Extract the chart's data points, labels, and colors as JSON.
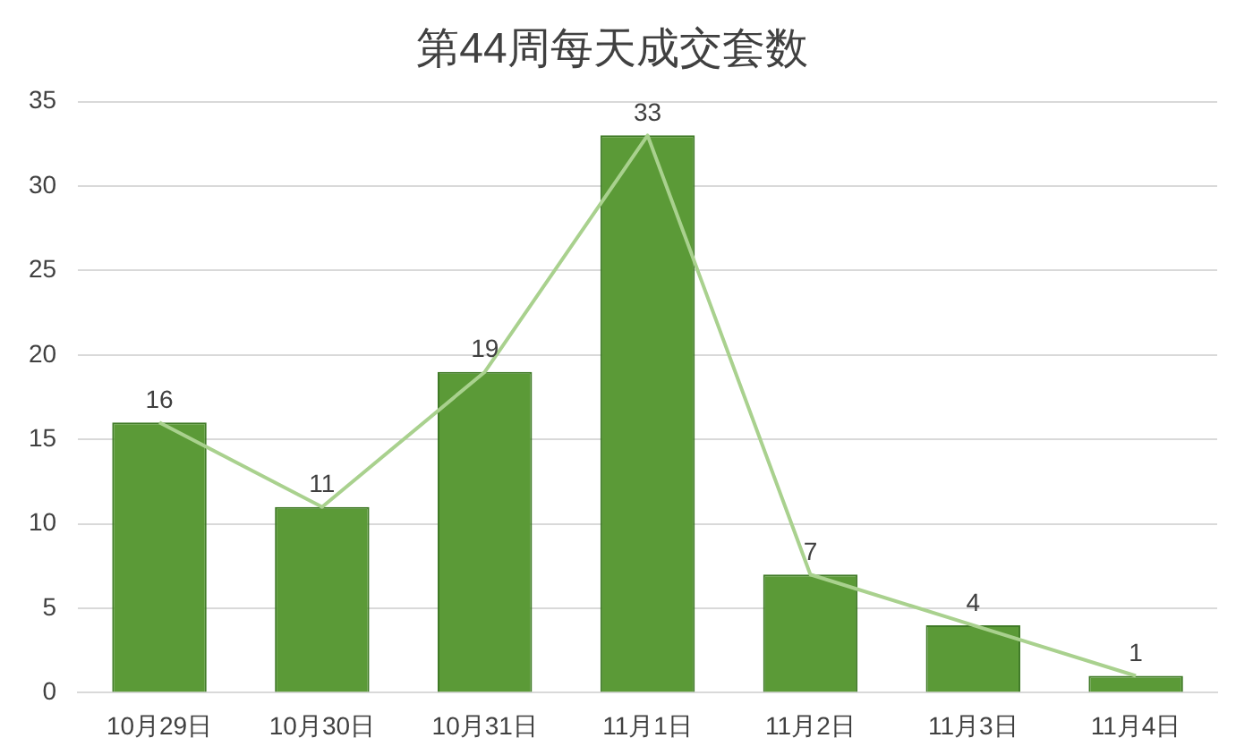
{
  "chart_data": {
    "type": "bar",
    "title": "第44周每天成交套数",
    "categories": [
      "10月29日",
      "10月30日",
      "10月31日",
      "11月1日",
      "11月2日",
      "11月3日",
      "11月4日"
    ],
    "series": [
      {
        "color": "#5b9a37",
        "values": [
          16,
          11,
          19,
          33,
          7,
          4,
          1
        ],
        "value_labels": [
          "16",
          "11",
          "19",
          "33",
          "7",
          "4",
          "1"
        ]
      },
      {
        "type": "line",
        "color": "#a9d18e",
        "values": [
          16,
          11,
          19,
          33,
          7,
          4,
          1
        ]
      }
    ],
    "ylim": [
      0,
      35
    ],
    "yticks": [
      0,
      5,
      10,
      15,
      20,
      25,
      30,
      35
    ],
    "grid": "y",
    "marker": "none",
    "legend": false
  }
}
